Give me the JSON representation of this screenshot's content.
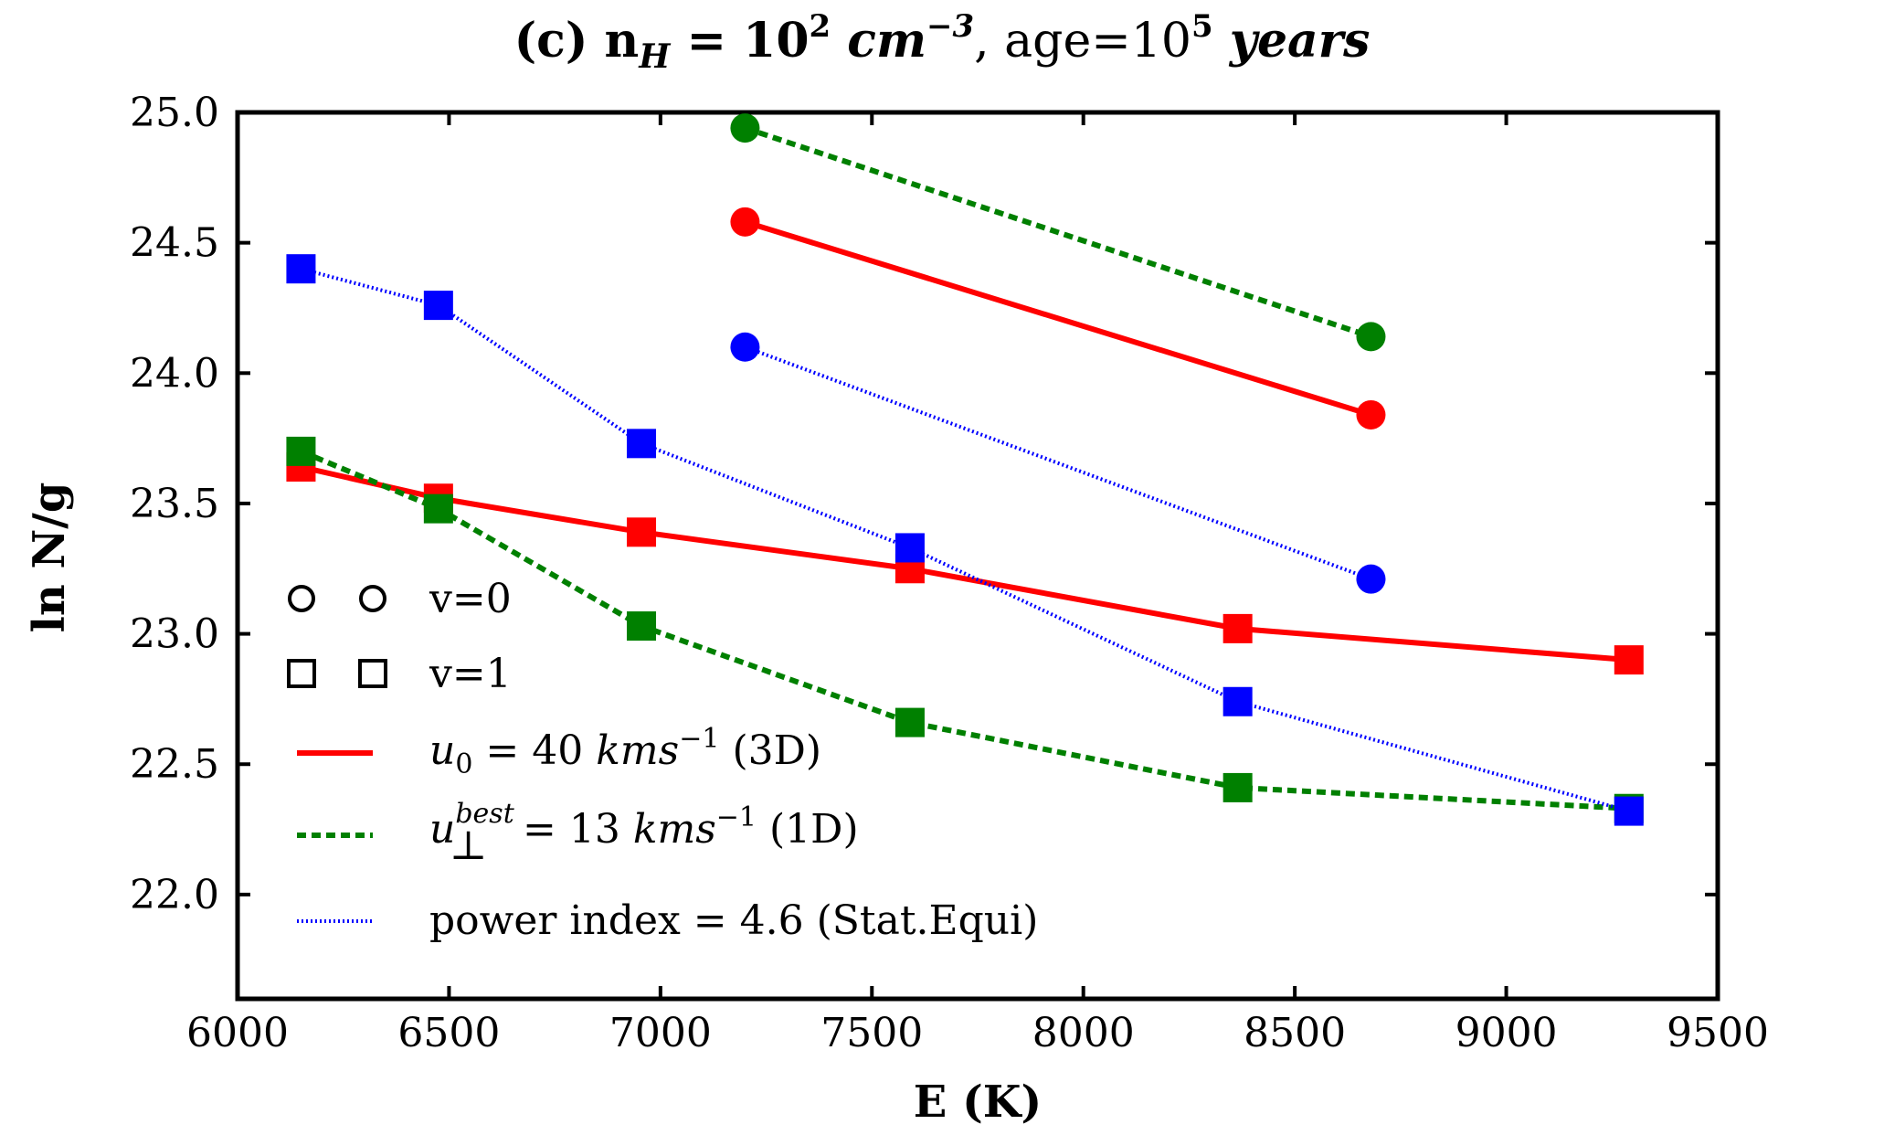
{
  "chart_data": {
    "type": "line",
    "title": {
      "prefix": "(c) n",
      "sub": "H",
      "eq": " = 10",
      "sup1": "2",
      "unit": " cm",
      "sup2": "−3",
      "age": ", age=10",
      "sup3": "5",
      "years": " years"
    },
    "xlabel": "E (K)",
    "ylabel": "ln N/g",
    "xlim": [
      6000,
      9500
    ],
    "ylim": [
      21.6,
      25.0
    ],
    "xticks": [
      6000,
      6500,
      7000,
      7500,
      8000,
      8500,
      9000,
      9500
    ],
    "yticks": [
      22.0,
      22.5,
      23.0,
      23.5,
      24.0,
      24.5,
      25.0
    ],
    "xtick_labels": [
      "6000",
      "6500",
      "7000",
      "7500",
      "8000",
      "8500",
      "9000",
      "9500"
    ],
    "ytick_labels": [
      "22.0",
      "22.5",
      "23.0",
      "23.5",
      "24.0",
      "24.5",
      "25.0"
    ],
    "series": [
      {
        "name": "u0 = 40 kms−1 (3D)",
        "color": "#ff0000",
        "style": "solid",
        "v0": {
          "x": [
            7200,
            8680
          ],
          "y": [
            24.58,
            23.84
          ]
        },
        "v1": {
          "x": [
            6150,
            6475,
            6955,
            7590,
            8365,
            9290
          ],
          "y": [
            23.64,
            23.52,
            23.39,
            23.25,
            23.02,
            22.9
          ]
        }
      },
      {
        "name": "u⊥best = 13 kms−1 (1D)",
        "color": "#008000",
        "style": "dashed",
        "v0": {
          "x": [
            7200,
            8680
          ],
          "y": [
            24.94,
            24.14
          ]
        },
        "v1": {
          "x": [
            6150,
            6475,
            6955,
            7590,
            8365,
            9290
          ],
          "y": [
            23.7,
            23.48,
            23.03,
            22.66,
            22.41,
            22.33
          ]
        }
      },
      {
        "name": "power index = 4.6 (Stat.Equi)",
        "color": "#0000ff",
        "style": "dotted",
        "v0": {
          "x": [
            7200,
            8680
          ],
          "y": [
            24.1,
            23.21
          ]
        },
        "v1": {
          "x": [
            6150,
            6475,
            6955,
            7590,
            8365,
            9290
          ],
          "y": [
            24.4,
            24.26,
            23.73,
            23.33,
            22.74,
            22.32
          ]
        }
      }
    ],
    "legend": {
      "v0_label": "v=0",
      "v1_label": "v=1",
      "red": {
        "sym": "u",
        "sub": "0",
        "rest": " = 40 ",
        "unit": "kms",
        "sup": "−1",
        "tail": " (3D)"
      },
      "green": {
        "sym": "u",
        "sup_top": "best",
        "sub": "⊥",
        "rest": " = 13 ",
        "unit": "kms",
        "sup": "−1",
        "tail": " (1D)"
      },
      "blue": {
        "text": "power index = 4.6 (Stat.Equi)"
      },
      "position": "lower-left"
    }
  }
}
